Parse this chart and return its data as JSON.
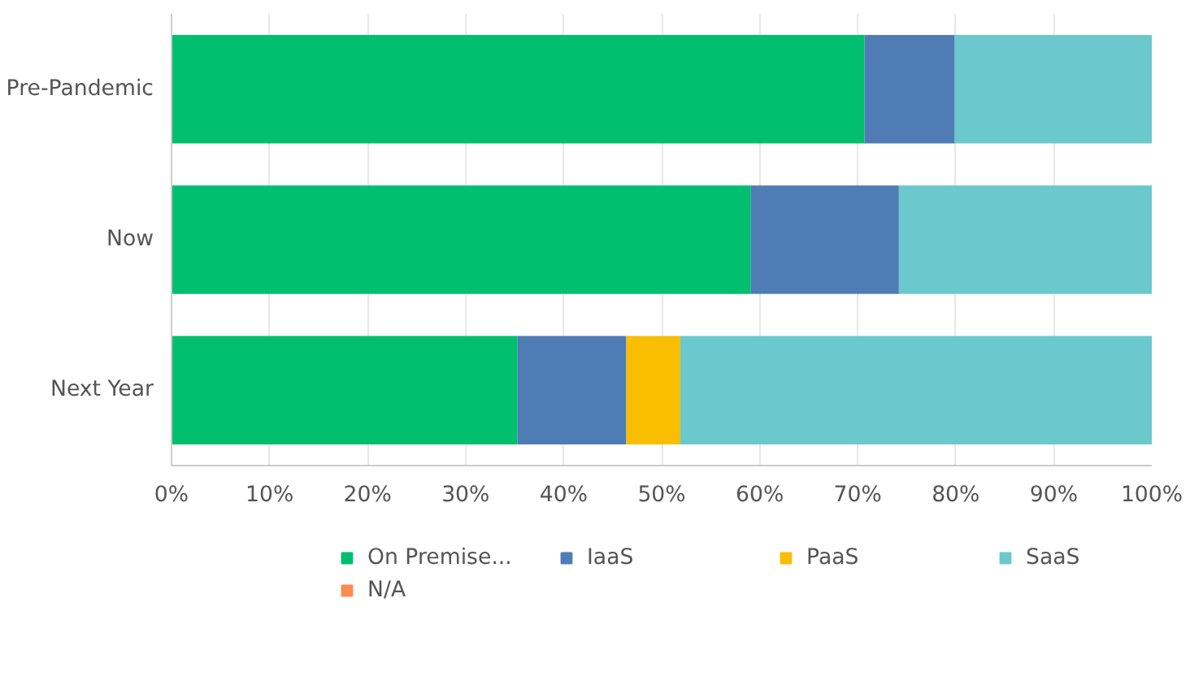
{
  "chart_data": {
    "type": "bar",
    "orientation": "horizontal",
    "stacked": true,
    "categories": [
      "Pre-Pandemic",
      "Now",
      "Next Year"
    ],
    "series": [
      {
        "name": "On Premise...",
        "color": "#00bf6f",
        "values": [
          70.7,
          59.1,
          35.3
        ]
      },
      {
        "name": "IaaS",
        "color": "#507cb6",
        "values": [
          9.2,
          15.1,
          11.1
        ]
      },
      {
        "name": "PaaS",
        "color": "#f9be00",
        "values": [
          0,
          0,
          5.5
        ]
      },
      {
        "name": "SaaS",
        "color": "#6bc8cd",
        "values": [
          20.1,
          25.8,
          48.1
        ]
      },
      {
        "name": "N/A",
        "color": "#ff8b4f",
        "values": [
          0,
          0,
          0
        ]
      }
    ],
    "xlim": [
      0,
      100
    ],
    "xticks": [
      {
        "value": 0,
        "label": "0%"
      },
      {
        "value": 10,
        "label": "10%"
      },
      {
        "value": 20,
        "label": "20%"
      },
      {
        "value": 30,
        "label": "30%"
      },
      {
        "value": 40,
        "label": "40%"
      },
      {
        "value": 50,
        "label": "50%"
      },
      {
        "value": 60,
        "label": "60%"
      },
      {
        "value": 70,
        "label": "70%"
      },
      {
        "value": 80,
        "label": "80%"
      },
      {
        "value": 90,
        "label": "90%"
      },
      {
        "value": 100,
        "label": "100%"
      }
    ],
    "grid": "x",
    "legend": "bottom"
  }
}
